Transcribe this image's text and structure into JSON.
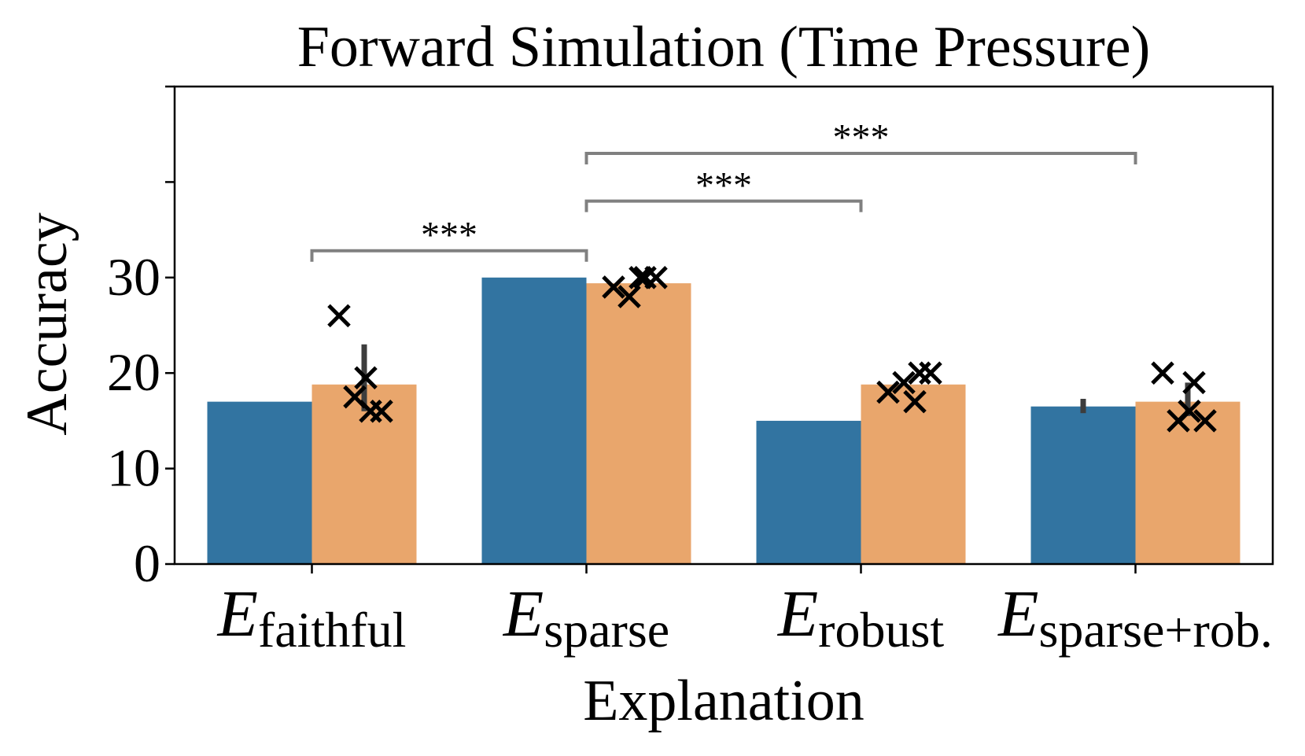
{
  "chart_data": {
    "type": "bar",
    "title": "Forward Simulation (Time Pressure)",
    "xlabel": "Explanation",
    "ylabel": "Accuracy",
    "ylim": [
      0,
      50
    ],
    "yticks": [
      0,
      10,
      20,
      30
    ],
    "yticks_unlabeled": [
      40,
      50
    ],
    "grid": false,
    "legend": "none",
    "categories": [
      {
        "main": "E",
        "sub": "faithful"
      },
      {
        "main": "E",
        "sub": "sparse"
      },
      {
        "main": "E",
        "sub": "robust"
      },
      {
        "main": "E",
        "sub": "sparse+rob."
      }
    ],
    "series": [
      {
        "color": "#3274a1",
        "values": [
          17,
          30,
          15,
          16.5
        ],
        "errors": [
          null,
          null,
          null,
          [
            15.8,
            17.3
          ]
        ],
        "points": [
          [],
          [],
          [],
          []
        ]
      },
      {
        "color": "#e9a66c",
        "values": [
          18.8,
          29.4,
          18.8,
          17
        ],
        "errors": [
          [
            16,
            23
          ],
          null,
          null,
          [
            15.5,
            19
          ]
        ],
        "points": [
          [
            26,
            19.5,
            17.5,
            16,
            16
          ],
          [
            29,
            30,
            28,
            30,
            30
          ],
          [
            18,
            17,
            19,
            20,
            20
          ],
          [
            20,
            16,
            15,
            15,
            19
          ]
        ]
      }
    ],
    "annotations": [
      {
        "label": "***",
        "from": 0,
        "to": 1,
        "y": 32.8,
        "text_y": 34.8
      },
      {
        "label": "***",
        "from": 1,
        "to": 2,
        "y": 38,
        "text_y": 40
      },
      {
        "label": "***",
        "from": 1,
        "to": 3,
        "y": 43,
        "text_y": 45
      }
    ]
  }
}
